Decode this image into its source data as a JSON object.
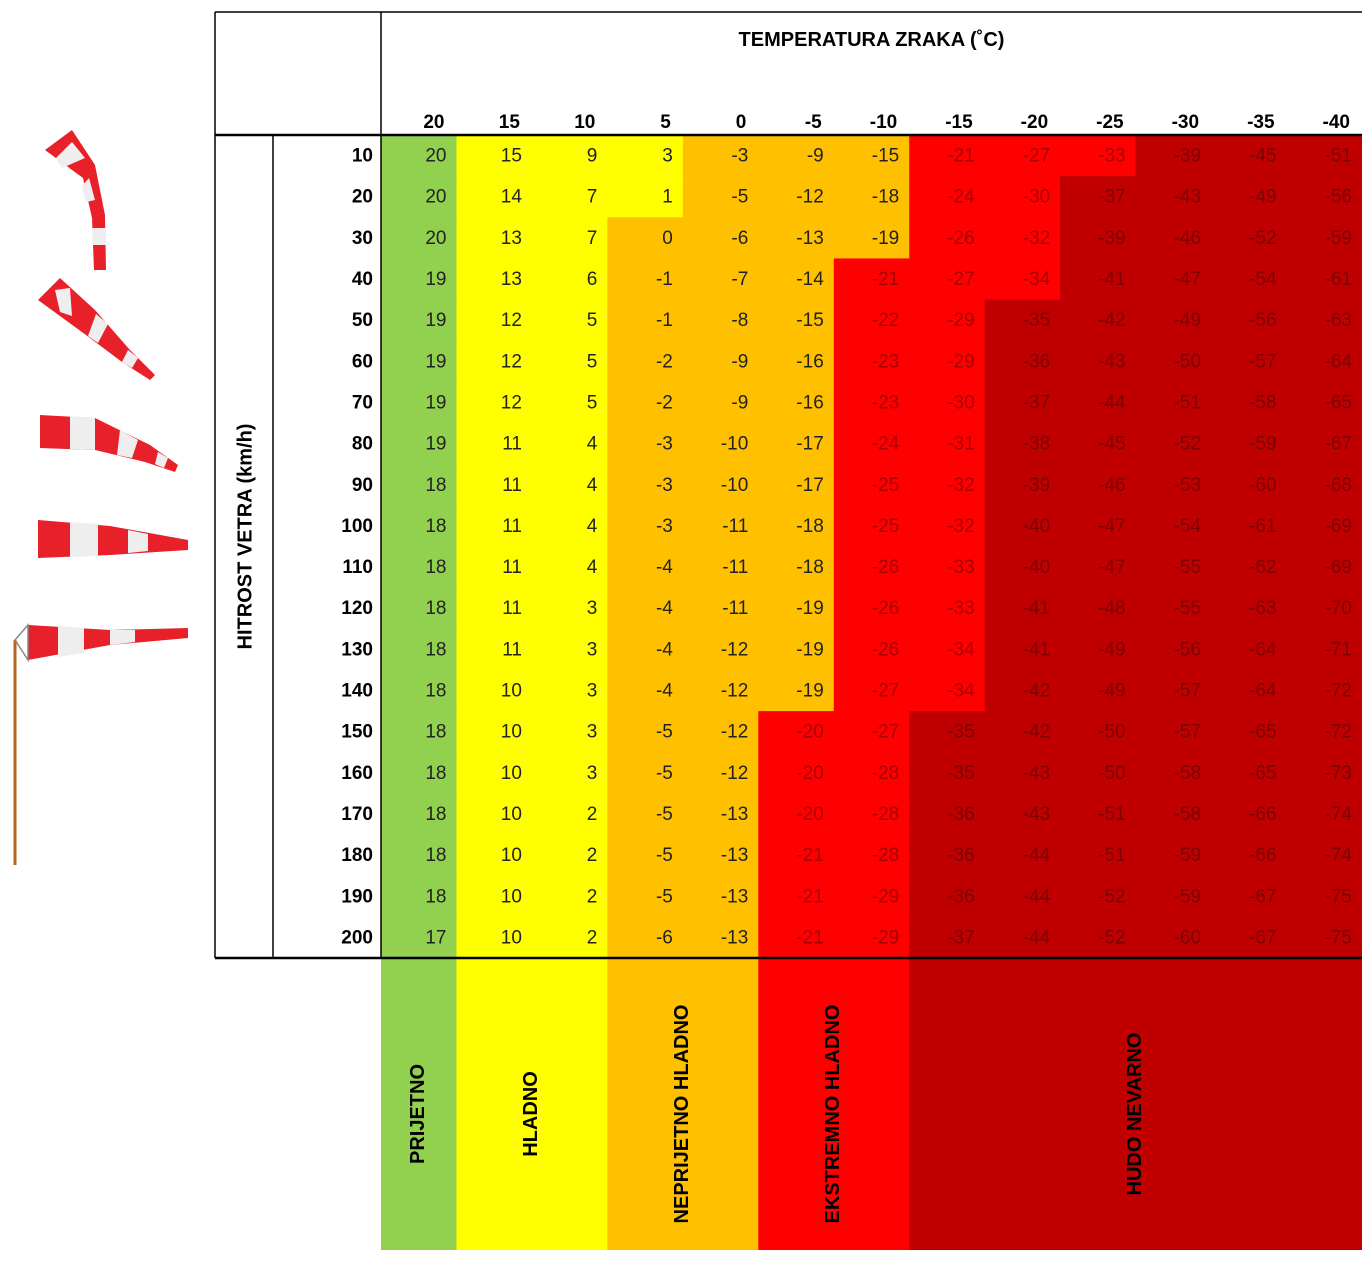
{
  "table": {
    "title": "TEMPERATURA ZRAKA  (˚C)",
    "row_header": "HITROST VETRA  (km/h)",
    "temperatures": [
      20,
      15,
      10,
      5,
      0,
      -5,
      -10,
      -15,
      -20,
      -25,
      -30,
      -35,
      -40
    ],
    "legend": [
      {
        "label": "PRIJETNO",
        "color": "#92d050"
      },
      {
        "label": "HLADNO",
        "color": "#ffff00"
      },
      {
        "label": "NEPRIJETNO HLADNO",
        "color": "#ffc000"
      },
      {
        "label": "EKSTREMNO HLADNO",
        "color": "#ff0000"
      },
      {
        "label": "HUDO NEVARNO",
        "color": "#c00000"
      }
    ],
    "rows": [
      {
        "speed": 10,
        "values": [
          20,
          15,
          9,
          3,
          -3,
          -9,
          -15,
          -21,
          -27,
          -33,
          -39,
          -45,
          -51
        ],
        "colors": [
          "#92d050",
          "#ffff00",
          "#ffff00",
          "#ffff00",
          "#ffc000",
          "#ffc000",
          "#ffc000",
          "#ff0000",
          "#ff0000",
          "#ff0000",
          "#c00000",
          "#c00000",
          "#c00000"
        ]
      },
      {
        "speed": 20,
        "values": [
          20,
          14,
          7,
          1,
          -5,
          -12,
          -18,
          -24,
          -30,
          -37,
          -43,
          -49,
          -56
        ],
        "colors": [
          "#92d050",
          "#ffff00",
          "#ffff00",
          "#ffff00",
          "#ffc000",
          "#ffc000",
          "#ffc000",
          "#ff0000",
          "#ff0000",
          "#c00000",
          "#c00000",
          "#c00000",
          "#c00000"
        ]
      },
      {
        "speed": 30,
        "values": [
          20,
          13,
          7,
          0,
          -6,
          -13,
          -19,
          -26,
          -32,
          -39,
          -46,
          -52,
          -59
        ],
        "colors": [
          "#92d050",
          "#ffff00",
          "#ffff00",
          "#ffc000",
          "#ffc000",
          "#ffc000",
          "#ffc000",
          "#ff0000",
          "#ff0000",
          "#c00000",
          "#c00000",
          "#c00000",
          "#c00000"
        ]
      },
      {
        "speed": 40,
        "values": [
          19,
          13,
          6,
          -1,
          -7,
          -14,
          -21,
          -27,
          -34,
          -41,
          -47,
          -54,
          -61
        ],
        "colors": [
          "#92d050",
          "#ffff00",
          "#ffff00",
          "#ffc000",
          "#ffc000",
          "#ffc000",
          "#ff0000",
          "#ff0000",
          "#ff0000",
          "#c00000",
          "#c00000",
          "#c00000",
          "#c00000"
        ]
      },
      {
        "speed": 50,
        "values": [
          19,
          12,
          5,
          -1,
          -8,
          -15,
          -22,
          -29,
          -35,
          -42,
          -49,
          -56,
          -63
        ],
        "colors": [
          "#92d050",
          "#ffff00",
          "#ffff00",
          "#ffc000",
          "#ffc000",
          "#ffc000",
          "#ff0000",
          "#ff0000",
          "#c00000",
          "#c00000",
          "#c00000",
          "#c00000",
          "#c00000"
        ]
      },
      {
        "speed": 60,
        "values": [
          19,
          12,
          5,
          -2,
          -9,
          -16,
          -23,
          -29,
          -36,
          -43,
          -50,
          -57,
          -64
        ],
        "colors": [
          "#92d050",
          "#ffff00",
          "#ffff00",
          "#ffc000",
          "#ffc000",
          "#ffc000",
          "#ff0000",
          "#ff0000",
          "#c00000",
          "#c00000",
          "#c00000",
          "#c00000",
          "#c00000"
        ]
      },
      {
        "speed": 70,
        "values": [
          19,
          12,
          5,
          -2,
          -9,
          -16,
          -23,
          -30,
          -37,
          -44,
          -51,
          -58,
          -65
        ],
        "colors": [
          "#92d050",
          "#ffff00",
          "#ffff00",
          "#ffc000",
          "#ffc000",
          "#ffc000",
          "#ff0000",
          "#ff0000",
          "#c00000",
          "#c00000",
          "#c00000",
          "#c00000",
          "#c00000"
        ]
      },
      {
        "speed": 80,
        "values": [
          19,
          11,
          4,
          -3,
          -10,
          -17,
          -24,
          -31,
          -38,
          -45,
          -52,
          -59,
          -67
        ],
        "colors": [
          "#92d050",
          "#ffff00",
          "#ffff00",
          "#ffc000",
          "#ffc000",
          "#ffc000",
          "#ff0000",
          "#ff0000",
          "#c00000",
          "#c00000",
          "#c00000",
          "#c00000",
          "#c00000"
        ]
      },
      {
        "speed": 90,
        "values": [
          18,
          11,
          4,
          -3,
          -10,
          -17,
          -25,
          -32,
          -39,
          -46,
          -53,
          -60,
          -68
        ],
        "colors": [
          "#92d050",
          "#ffff00",
          "#ffff00",
          "#ffc000",
          "#ffc000",
          "#ffc000",
          "#ff0000",
          "#ff0000",
          "#c00000",
          "#c00000",
          "#c00000",
          "#c00000",
          "#c00000"
        ]
      },
      {
        "speed": 100,
        "values": [
          18,
          11,
          4,
          -3,
          -11,
          -18,
          -25,
          -32,
          -40,
          -47,
          -54,
          -61,
          -69
        ],
        "colors": [
          "#92d050",
          "#ffff00",
          "#ffff00",
          "#ffc000",
          "#ffc000",
          "#ffc000",
          "#ff0000",
          "#ff0000",
          "#c00000",
          "#c00000",
          "#c00000",
          "#c00000",
          "#c00000"
        ]
      },
      {
        "speed": 110,
        "values": [
          18,
          11,
          4,
          -4,
          -11,
          -18,
          -26,
          -33,
          -40,
          -47,
          -55,
          -62,
          -69
        ],
        "colors": [
          "#92d050",
          "#ffff00",
          "#ffff00",
          "#ffc000",
          "#ffc000",
          "#ffc000",
          "#ff0000",
          "#ff0000",
          "#c00000",
          "#c00000",
          "#c00000",
          "#c00000",
          "#c00000"
        ]
      },
      {
        "speed": 120,
        "values": [
          18,
          11,
          3,
          -4,
          -11,
          -19,
          -26,
          -33,
          -41,
          -48,
          -55,
          -63,
          -70
        ],
        "colors": [
          "#92d050",
          "#ffff00",
          "#ffff00",
          "#ffc000",
          "#ffc000",
          "#ffc000",
          "#ff0000",
          "#ff0000",
          "#c00000",
          "#c00000",
          "#c00000",
          "#c00000",
          "#c00000"
        ]
      },
      {
        "speed": 130,
        "values": [
          18,
          11,
          3,
          -4,
          -12,
          -19,
          -26,
          -34,
          -41,
          -49,
          -56,
          -64,
          -71
        ],
        "colors": [
          "#92d050",
          "#ffff00",
          "#ffff00",
          "#ffc000",
          "#ffc000",
          "#ffc000",
          "#ff0000",
          "#ff0000",
          "#c00000",
          "#c00000",
          "#c00000",
          "#c00000",
          "#c00000"
        ]
      },
      {
        "speed": 140,
        "values": [
          18,
          10,
          3,
          -4,
          -12,
          -19,
          -27,
          -34,
          -42,
          -49,
          -57,
          -64,
          -72
        ],
        "colors": [
          "#92d050",
          "#ffff00",
          "#ffff00",
          "#ffc000",
          "#ffc000",
          "#ffc000",
          "#ff0000",
          "#ff0000",
          "#c00000",
          "#c00000",
          "#c00000",
          "#c00000",
          "#c00000"
        ]
      },
      {
        "speed": 150,
        "values": [
          18,
          10,
          3,
          -5,
          -12,
          -20,
          -27,
          -35,
          -42,
          -50,
          -57,
          -65,
          -72
        ],
        "colors": [
          "#92d050",
          "#ffff00",
          "#ffff00",
          "#ffc000",
          "#ffc000",
          "#ff0000",
          "#ff0000",
          "#c00000",
          "#c00000",
          "#c00000",
          "#c00000",
          "#c00000",
          "#c00000"
        ]
      },
      {
        "speed": 160,
        "values": [
          18,
          10,
          3,
          -5,
          -12,
          -20,
          -28,
          -35,
          -43,
          -50,
          -58,
          -65,
          -73
        ],
        "colors": [
          "#92d050",
          "#ffff00",
          "#ffff00",
          "#ffc000",
          "#ffc000",
          "#ff0000",
          "#ff0000",
          "#c00000",
          "#c00000",
          "#c00000",
          "#c00000",
          "#c00000",
          "#c00000"
        ]
      },
      {
        "speed": 170,
        "values": [
          18,
          10,
          2,
          -5,
          -13,
          -20,
          -28,
          -36,
          -43,
          -51,
          -58,
          -66,
          -74
        ],
        "colors": [
          "#92d050",
          "#ffff00",
          "#ffff00",
          "#ffc000",
          "#ffc000",
          "#ff0000",
          "#ff0000",
          "#c00000",
          "#c00000",
          "#c00000",
          "#c00000",
          "#c00000",
          "#c00000"
        ]
      },
      {
        "speed": 180,
        "values": [
          18,
          10,
          2,
          -5,
          -13,
          -21,
          -28,
          -36,
          -44,
          -51,
          -59,
          -66,
          -74
        ],
        "colors": [
          "#92d050",
          "#ffff00",
          "#ffff00",
          "#ffc000",
          "#ffc000",
          "#ff0000",
          "#ff0000",
          "#c00000",
          "#c00000",
          "#c00000",
          "#c00000",
          "#c00000",
          "#c00000"
        ]
      },
      {
        "speed": 190,
        "values": [
          18,
          10,
          2,
          -5,
          -13,
          -21,
          -29,
          -36,
          -44,
          -52,
          -59,
          -67,
          -75
        ],
        "colors": [
          "#92d050",
          "#ffff00",
          "#ffff00",
          "#ffc000",
          "#ffc000",
          "#ff0000",
          "#ff0000",
          "#c00000",
          "#c00000",
          "#c00000",
          "#c00000",
          "#c00000",
          "#c00000"
        ]
      },
      {
        "speed": 200,
        "values": [
          17,
          10,
          2,
          -6,
          -13,
          -21,
          -29,
          -37,
          -44,
          -52,
          -60,
          -67,
          -75
        ],
        "colors": [
          "#92d050",
          "#ffff00",
          "#ffff00",
          "#ffc000",
          "#ffc000",
          "#ff0000",
          "#ff0000",
          "#c00000",
          "#c00000",
          "#c00000",
          "#c00000",
          "#c00000",
          "#c00000"
        ]
      }
    ]
  }
}
